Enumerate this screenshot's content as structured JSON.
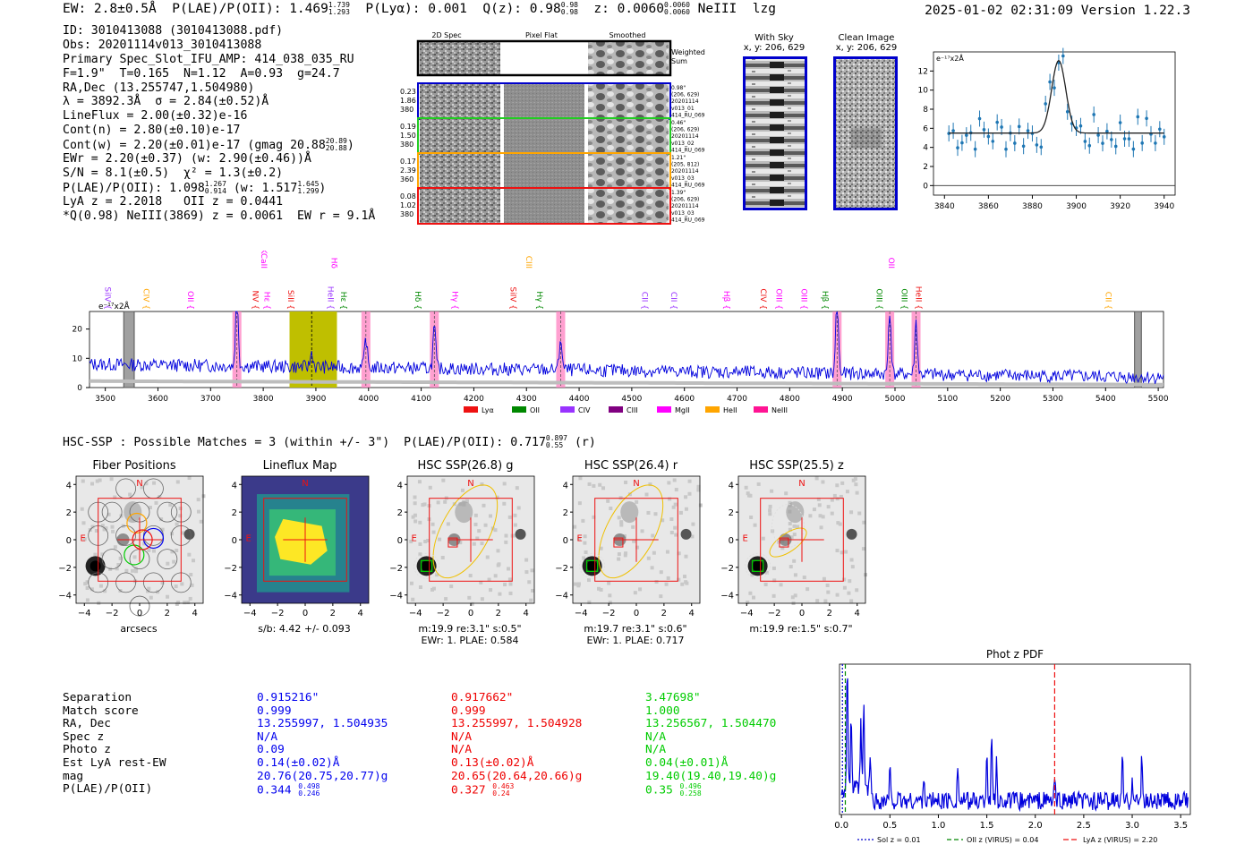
{
  "header": {
    "ew": "EW: 2.8±0.5Å",
    "plae_label": "P(LAE)/P(OII):",
    "plae_value": "1.469",
    "plae_hi": "1.739",
    "plae_lo": "1.293",
    "plya": "P(Lyα): 0.001",
    "q_label": "Q(z): 0.98",
    "q_hi": "0.98",
    "q_lo": "0.98",
    "z_label": "z: 0.0060",
    "z_hi": "0.0060",
    "z_lo": "0.0060",
    "line_name": "NeIII",
    "user": "lzg",
    "timestamp": "2025-01-02 02:31:09",
    "version": "Version 1.22.3"
  },
  "info": {
    "id": "ID: 3010413088 (3010413088.pdf)",
    "obs": "Obs: 20201114v013_3010413088",
    "primary": "Primary Spec_Slot_IFU_AMP: 414_038_035_RU",
    "fwhm": "F=1.9\"  T=0.165  N=1.12  A=0.93  g=24.7",
    "radec": "RA,Dec (13.255747,1.504980)",
    "lambda": "λ = 3892.3Å  σ = 2.84(±0.52)Å",
    "lineflux": "LineFlux = 2.00(±0.32)e-16",
    "cont_n": "Cont(n) = 2.80(±0.10)e-17",
    "cont_w": "Cont(w) = 2.20(±0.01)e-17 (gmag 20.88",
    "cont_w_hi": "20.89",
    "cont_w_lo": "20.88",
    "ewr": "EWr = 2.20(±0.37) (w: 2.90(±0.46))Å",
    "sn": "S/N = 8.1(±0.5)  χ² = 1.3(±0.2)",
    "plae_line": "P(LAE)/P(OII): 1.098",
    "plae_line_hi": "1.267",
    "plae_line_lo": "0.914",
    "plae_line_w": "(w: 1.517",
    "plae_line_w_hi": "1.645",
    "plae_line_w_lo": "1.299",
    "lya_z": "LyA z = 2.2018   OII z = 0.0441",
    "q_line": "*Q(0.98) NeIII(3869) z = 0.0061  EW r = 9.1Å"
  },
  "cutouts": {
    "col_2d": "2D Spec",
    "col_flat": "Pixel Flat",
    "col_smooth": "Smoothed",
    "weighted": "Weighted",
    "sum": "Sum",
    "rows": [
      {
        "a": "0.23",
        "b": "1.86",
        "c": "380",
        "r1": "0.98\"",
        "r2": "(206, 629)",
        "r3": "20201114",
        "r4": "v013_01",
        "r5": "414_RU_069",
        "color": "#0000cc"
      },
      {
        "a": "0.19",
        "b": "1.50",
        "c": "380",
        "r1": "0.46\"",
        "r2": "(206, 629)",
        "r3": "20201114",
        "r4": "v013_02",
        "r5": "414_RU_069",
        "color": "#22cc22"
      },
      {
        "a": "0.17",
        "b": "2.39",
        "c": "360",
        "r1": "1.21\"",
        "r2": "(205, 812)",
        "r3": "20201114",
        "r4": "v013_03",
        "r5": "414_RU_069",
        "color": "#ffa500"
      },
      {
        "a": "0.08",
        "b": "1.02",
        "c": "380",
        "r1": "1.39\"",
        "r2": "(206, 629)",
        "r3": "20201114",
        "r4": "v013_03",
        "r5": "414_RU_069",
        "color": "#ee1111"
      }
    ]
  },
  "sky": {
    "with_sky": "With Sky",
    "with_sky_xy": "x, y: 206, 629",
    "clean": "Clean Image",
    "clean_xy": "x, y: 206, 629"
  },
  "zoom_plot": {
    "unit": "e⁻¹⁷x2Å",
    "x_ticks": [
      "3840",
      "3860",
      "3880",
      "3900",
      "3920",
      "3940"
    ],
    "y_ticks": [
      "0",
      "2",
      "4",
      "6",
      "8",
      "10",
      "12"
    ]
  },
  "spectrum": {
    "unit": "e⁻¹⁷x2Å",
    "x_ticks": [
      "3500",
      "3600",
      "3700",
      "3800",
      "3900",
      "4000",
      "4100",
      "4200",
      "4300",
      "4400",
      "4500",
      "4600",
      "4700",
      "4800",
      "4900",
      "5000",
      "5100",
      "5200",
      "5300",
      "5400",
      "5500"
    ],
    "y_ticks": [
      "0",
      "10",
      "20"
    ],
    "legend": [
      {
        "label": "Lyα",
        "color": "#ee1111"
      },
      {
        "label": "OII",
        "color": "#008800"
      },
      {
        "label": "CIV",
        "color": "#9933ff"
      },
      {
        "label": "CIII",
        "color": "#800080"
      },
      {
        "label": "MgII",
        "color": "#ff00ff"
      },
      {
        "label": "HeII",
        "color": "#ffa500"
      },
      {
        "label": "NeIII",
        "color": "#ff1493"
      }
    ],
    "line_labels": [
      {
        "t": "SiIV",
        "c": "#9933ff",
        "w": 3500,
        "row": 0
      },
      {
        "t": "CIV",
        "c": "#ffa500",
        "w": 3573,
        "row": 0
      },
      {
        "t": "OII",
        "c": "#ff00ff",
        "w": 3657,
        "row": 0
      },
      {
        "t": "NV",
        "c": "#ee1111",
        "w": 3780,
        "row": 0
      },
      {
        "t": "Hε",
        "c": "#ff00ff",
        "w": 3802,
        "row": 0
      },
      {
        "t": "SiII",
        "c": "#ee1111",
        "w": 3847,
        "row": 0
      },
      {
        "t": "HeII",
        "c": "#9933ff",
        "w": 3923,
        "row": 0
      },
      {
        "t": "Hε",
        "c": "#008800",
        "w": 3948,
        "row": 0
      },
      {
        "t": "Hδ",
        "c": "#008800",
        "w": 4089,
        "row": 0
      },
      {
        "t": "Hγ",
        "c": "#ff00ff",
        "w": 4159,
        "row": 0
      },
      {
        "t": "SiIV",
        "c": "#ee1111",
        "w": 4270,
        "row": 0
      },
      {
        "t": "Hγ",
        "c": "#008800",
        "w": 4320,
        "row": 0
      },
      {
        "t": "CII",
        "c": "#9933ff",
        "w": 4520,
        "row": 0
      },
      {
        "t": "CII",
        "c": "#9933ff",
        "w": 4575,
        "row": 0
      },
      {
        "t": "Hβ",
        "c": "#ff00ff",
        "w": 4675,
        "row": 0
      },
      {
        "t": "CIV",
        "c": "#ee1111",
        "w": 4745,
        "row": 0
      },
      {
        "t": "OIII",
        "c": "#ff00ff",
        "w": 4775,
        "row": 0
      },
      {
        "t": "OIII",
        "c": "#ff00ff",
        "w": 4822,
        "row": 0
      },
      {
        "t": "Hβ",
        "c": "#008800",
        "w": 4862,
        "row": 0
      },
      {
        "t": "OIII",
        "c": "#008800",
        "w": 4965,
        "row": 0
      },
      {
        "t": "OIII",
        "c": "#008800",
        "w": 5013,
        "row": 0
      },
      {
        "t": "HeII",
        "c": "#ee1111",
        "w": 5040,
        "row": 0
      },
      {
        "t": "CII",
        "c": "#ffa500",
        "w": 5400,
        "row": 0
      },
      {
        "t": "HKCaII",
        "c": "#ff00ff",
        "w": 3796,
        "row": 1
      },
      {
        "t": "Hδ",
        "c": "#ff00ff",
        "w": 3930,
        "row": 1
      },
      {
        "t": "CIII",
        "c": "#ffa500",
        "w": 4300,
        "row": 1
      },
      {
        "t": "OII",
        "c": "#ff00ff",
        "w": 4988,
        "row": 1
      }
    ]
  },
  "match_line": {
    "text": "HSC-SSP : Possible Matches = 3 (within +/- 3\")  P(LAE)/P(OII): 0.717",
    "hi": "0.897",
    "lo": "0.55",
    "suffix": "(r)"
  },
  "thumbs": [
    {
      "title": "Fiber Positions",
      "caption": "arcsecs",
      "caption2": ""
    },
    {
      "title": "Lineflux Map",
      "caption": "s/b: 4.42 +/- 0.093",
      "caption2": ""
    },
    {
      "title": "HSC SSP(26.8) g",
      "caption": "m:19.9  re:3.1\"  s:0.5\"",
      "caption2": "EWr: 1. PLAE: 0.584"
    },
    {
      "title": "HSC SSP(26.4) r",
      "caption": "m:19.7  re:3.1\"  s:0.6\"",
      "caption2": "EWr: 1. PLAE: 0.717"
    },
    {
      "title": "HSC SSP(25.5) z",
      "caption": "m:19.9  re:1.5\"  s:0.7\"",
      "caption2": ""
    }
  ],
  "thumb_axes": {
    "x_ticks": [
      "−4",
      "−2",
      "0",
      "2",
      "4"
    ],
    "y_ticks": [
      "4",
      "2",
      "0",
      "−2",
      "−4"
    ],
    "north": "N",
    "east": "E"
  },
  "table": {
    "labels": [
      "Separation",
      "Match score",
      "RA, Dec",
      "Spec z",
      "Photo z",
      "Est LyA rest-EW",
      "mag",
      "P(LAE)/P(OII)"
    ],
    "cols": [
      {
        "color": "#0000ee",
        "values": [
          "0.915216\"",
          "0.999",
          "13.255997, 1.504935",
          "N/A",
          "0.09",
          "0.14(±0.02)Å",
          "20.76(20.75,20.77)g",
          "0.344"
        ],
        "hi": "0.498",
        "lo": "0.246"
      },
      {
        "color": "#ee0000",
        "values": [
          "0.917662\"",
          "0.999",
          "13.255997, 1.504928",
          "N/A",
          "N/A",
          "0.13(±0.02)Å",
          "20.65(20.64,20.66)g",
          "0.327"
        ],
        "hi": "0.463",
        "lo": "0.24"
      },
      {
        "color": "#00cc00",
        "values": [
          "3.47698\"",
          "1.000",
          "13.256567, 1.504470",
          "N/A",
          "N/A",
          "0.04(±0.01)Å",
          "19.40(19.40,19.40)g",
          "0.35"
        ],
        "hi": "0.496",
        "lo": "0.258"
      }
    ]
  },
  "photz": {
    "title": "Phot z PDF",
    "x_ticks": [
      "0.0",
      "0.5",
      "1.0",
      "1.5",
      "2.0",
      "2.5",
      "3.0",
      "3.5"
    ],
    "legend": [
      {
        "label": "Sol z = 0.01",
        "color": "#0000cc"
      },
      {
        "label": "OII z (VIRUS) = 0.04",
        "color": "#008800"
      },
      {
        "label": "LyA z (VIRUS) = 2.20",
        "color": "#ee1111"
      }
    ]
  }
}
